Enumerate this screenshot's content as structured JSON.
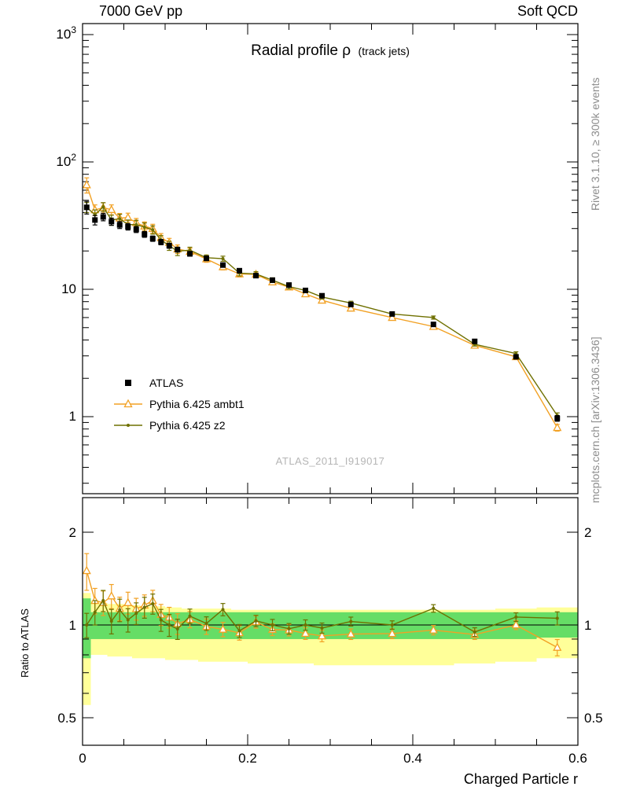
{
  "header": {
    "left": "7000 GeV pp",
    "right": "Soft QCD"
  },
  "title": {
    "main": "Radial profile ρ",
    "suffix": "(track jets)"
  },
  "watermark": "ATLAS_2011_I919017",
  "side_notes": {
    "top_right": "Rivet 3.1.10, ≥ 300k events",
    "bottom_right": "mcplots.cern.ch [arXiv:1306.3436]"
  },
  "colors": {
    "frame": "#000000",
    "ambt1": "#f2a124",
    "z2": "#6f7000",
    "band_yellow": "#ffff99",
    "band_green": "#66dd66",
    "side_text": "#8c8c8c",
    "watermark": "#b5b5b5"
  },
  "chart_data": {
    "type": "line",
    "title": "Radial profile ρ (track jets)",
    "xlabel": "Charged Particle r",
    "ylabel_ratio": "Ratio to ATLAS",
    "x_range": [
      0,
      0.6
    ],
    "y_main_scale": "log",
    "y_main_range": [
      0.25,
      1200
    ],
    "y_ratio_scale": "log",
    "y_ratio_range": [
      0.41,
      2.59
    ],
    "grid": false,
    "legend_position": "inside-left-bottom",
    "x_ticks": {
      "values": [
        0,
        0.2,
        0.4,
        0.6
      ],
      "labels": [
        "0",
        "0.2",
        "0.4",
        "0.6"
      ],
      "minor_step": 0.05
    },
    "y_main_ticks": {
      "values": [
        1,
        10,
        100,
        1000
      ],
      "labels": [
        [
          "1",
          ""
        ],
        [
          "10",
          ""
        ],
        [
          "10",
          "2"
        ],
        [
          "10",
          "3"
        ]
      ]
    },
    "y_ratio_ticks": {
      "values": [
        0.5,
        1,
        2
      ],
      "labels": [
        "0.5",
        "1",
        "2"
      ],
      "minor": [
        0.6,
        0.7,
        0.8,
        0.9
      ]
    },
    "bin_edges": [
      0,
      0.01,
      0.02,
      0.03,
      0.04,
      0.05,
      0.06,
      0.07,
      0.08,
      0.09,
      0.1,
      0.11,
      0.12,
      0.14,
      0.16,
      0.18,
      0.2,
      0.22,
      0.24,
      0.26,
      0.28,
      0.3,
      0.35,
      0.4,
      0.45,
      0.5,
      0.55,
      0.6
    ],
    "r": [
      0.005,
      0.015,
      0.025,
      0.035,
      0.045,
      0.055,
      0.065,
      0.075,
      0.085,
      0.095,
      0.105,
      0.115,
      0.13,
      0.15,
      0.17,
      0.19,
      0.21,
      0.23,
      0.25,
      0.27,
      0.29,
      0.325,
      0.375,
      0.425,
      0.475,
      0.525,
      0.575
    ],
    "ratio_reference": "atlas",
    "series": [
      {
        "id": "atlas",
        "label": "ATLAS",
        "color": "#000000",
        "marker": "square",
        "line": false,
        "values": [
          44,
          35,
          37,
          34,
          32,
          31,
          29.5,
          27,
          25,
          23.5,
          22,
          20.5,
          19,
          17.5,
          15.5,
          14,
          12.8,
          11.8,
          10.8,
          9.8,
          8.9,
          7.6,
          6.4,
          5.3,
          3.9,
          2.95,
          0.97
        ],
        "errors": [
          5,
          3,
          2.5,
          2.2,
          2,
          1.8,
          1.6,
          1.4,
          1.2,
          1.1,
          1,
          0.9,
          0.8,
          0.7,
          0.6,
          0.5,
          0.45,
          0.4,
          0.35,
          0.3,
          0.28,
          0.22,
          0.18,
          0.15,
          0.11,
          0.09,
          0.05
        ]
      },
      {
        "id": "ambt1",
        "label": "Pythia 6.425 ambt1",
        "color": "#f2a124",
        "marker": "triangle",
        "line": true,
        "values": [
          66,
          42,
          43.7,
          42.2,
          36.2,
          36.6,
          33.3,
          31.3,
          30,
          25.4,
          23.3,
          20.7,
          19.8,
          17.3,
          15,
          13.2,
          13.1,
          11.4,
          10.4,
          9.2,
          8.2,
          7.1,
          6.0,
          5.1,
          3.63,
          2.95,
          0.82
        ],
        "errors": [
          9,
          4,
          4,
          3.8,
          3.2,
          3,
          2.7,
          2.5,
          2.4,
          2,
          1.8,
          1.6,
          1.2,
          1,
          0.8,
          0.7,
          0.6,
          0.5,
          0.45,
          0.4,
          0.35,
          0.28,
          0.22,
          0.18,
          0.13,
          0.1,
          0.05
        ]
      },
      {
        "id": "z2",
        "label": "Pythia 6.425 z2",
        "color": "#6f7000",
        "marker": "dot",
        "line": true,
        "values": [
          44,
          38.5,
          44.4,
          35,
          35.8,
          32.2,
          32.2,
          30.8,
          29.3,
          24.4,
          22,
          19.9,
          20.3,
          17.7,
          17.4,
          13.4,
          13.2,
          11.8,
          10.5,
          9.8,
          8.7,
          7.8,
          6.4,
          6.0,
          3.7,
          3.13,
          1.02
        ],
        "errors": [
          4,
          3.5,
          3.5,
          3.2,
          3,
          2.8,
          2.6,
          2.4,
          2.2,
          2,
          1.8,
          1.5,
          1.1,
          0.9,
          0.8,
          0.65,
          0.55,
          0.5,
          0.42,
          0.38,
          0.33,
          0.26,
          0.2,
          0.17,
          0.12,
          0.1,
          0.05
        ]
      }
    ],
    "bands": {
      "yellow": {
        "lo": [
          0.55,
          0.8,
          0.8,
          0.79,
          0.79,
          0.79,
          0.78,
          0.78,
          0.78,
          0.78,
          0.77,
          0.77,
          0.77,
          0.76,
          0.76,
          0.76,
          0.75,
          0.75,
          0.75,
          0.75,
          0.74,
          0.74,
          0.74,
          0.74,
          0.75,
          0.76,
          0.78
        ],
        "hi": [
          1.27,
          1.2,
          1.18,
          1.17,
          1.17,
          1.16,
          1.16,
          1.15,
          1.15,
          1.15,
          1.14,
          1.14,
          1.13,
          1.13,
          1.13,
          1.12,
          1.12,
          1.12,
          1.12,
          1.12,
          1.12,
          1.12,
          1.12,
          1.12,
          1.12,
          1.13,
          1.14
        ]
      },
      "green": {
        "lo": [
          0.78,
          0.9,
          0.9,
          0.9,
          0.9,
          0.9,
          0.9,
          0.9,
          0.9,
          0.9,
          0.9,
          0.9,
          0.9,
          0.9,
          0.9,
          0.9,
          0.9,
          0.9,
          0.9,
          0.9,
          0.9,
          0.9,
          0.9,
          0.9,
          0.9,
          0.9,
          0.91
        ],
        "hi": [
          1.22,
          1.1,
          1.1,
          1.1,
          1.1,
          1.1,
          1.1,
          1.1,
          1.1,
          1.1,
          1.1,
          1.1,
          1.1,
          1.1,
          1.1,
          1.1,
          1.1,
          1.1,
          1.1,
          1.1,
          1.1,
          1.1,
          1.1,
          1.1,
          1.1,
          1.1,
          1.1
        ]
      }
    }
  }
}
